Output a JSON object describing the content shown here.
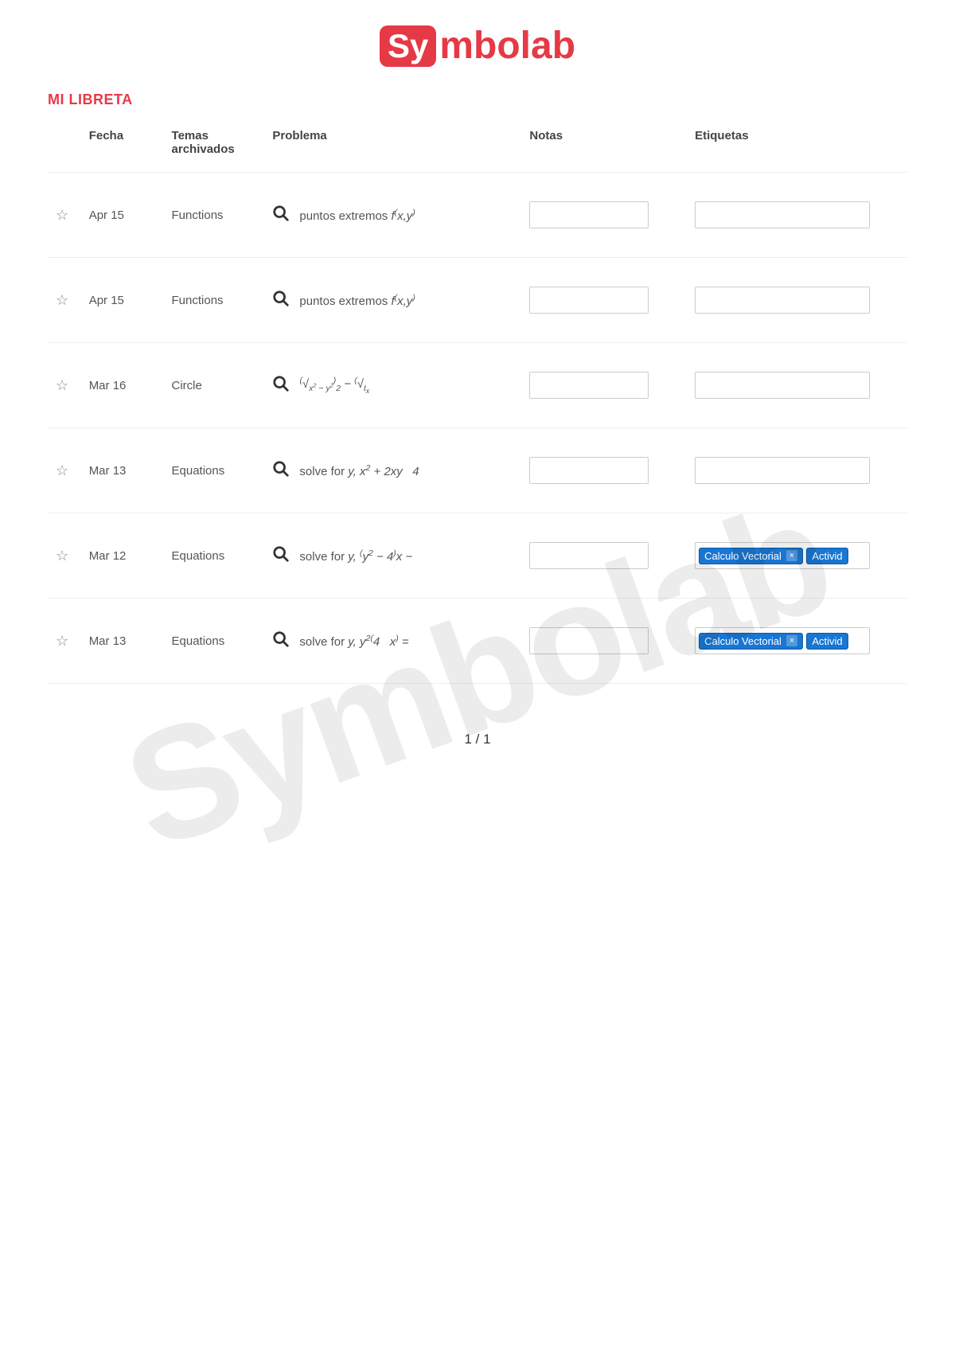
{
  "logo": {
    "box": "Sy",
    "rest": "mbolab",
    "color": "#e63946"
  },
  "watermark": "Symbolab",
  "section_title": "MI LIBRETA",
  "columns": {
    "star": "",
    "date": "Fecha",
    "topic": "Temas archivados",
    "problem": "Problema",
    "notes": "Notas",
    "tags": "Etiquetas"
  },
  "rows": [
    {
      "date": "Apr 15",
      "topic": "Functions",
      "problem_html": "<span class='upright'>puntos extremos</span> f<span class='sup'>(</span>x,y<span class='sup'>)</span>",
      "tags": []
    },
    {
      "date": "Apr 15",
      "topic": "Functions",
      "problem_html": "<span class='upright'>puntos extremos</span> f<span class='sup'>(</span>x,y<span class='sup'>)</span>",
      "tags": []
    },
    {
      "date": "Mar 16",
      "topic": "Circle",
      "problem_html": "<span class='math-complex'><span class='sup'>(</span>√<span class='sub'>x<span class='sup'>2</span> − y<span class='sup'>2</span></span><span class='sup'>)</span><span class='sub'>2</span> − <span class='sup'>(</span>√<span class='sub'>t<sub>x</sub></span></span>",
      "tags": []
    },
    {
      "date": "Mar 13",
      "topic": "Equations",
      "problem_html": "<span class='upright'>solve for</span> y, x<span class='sup'>2</span> + 2xy&nbsp;&nbsp;&nbsp;4",
      "tags": []
    },
    {
      "date": "Mar 12",
      "topic": "Equations",
      "problem_html": "<span class='upright'>solve for</span> y, <span class='sup'>(</span>y<span class='sup'>2</span> − 4<span class='sup'>)</span>x −",
      "tags": [
        "Calculo Vectorial",
        "Activid"
      ]
    },
    {
      "date": "Mar 13",
      "topic": "Equations",
      "problem_html": "<span class='upright'>solve for</span> y, y<span class='sup'>2(</span>4&nbsp;&nbsp;&nbsp;x<span class='sup'>)</span> =",
      "tags": [
        "Calculo Vectorial",
        "Activid"
      ]
    }
  ],
  "pager": "1 / 1",
  "colors": {
    "brand": "#e63946",
    "tag_bg": "#1976d2",
    "tag_border": "#0d5aa7",
    "border": "#eeeeee",
    "input_border": "#cccccc",
    "text": "#555555"
  }
}
